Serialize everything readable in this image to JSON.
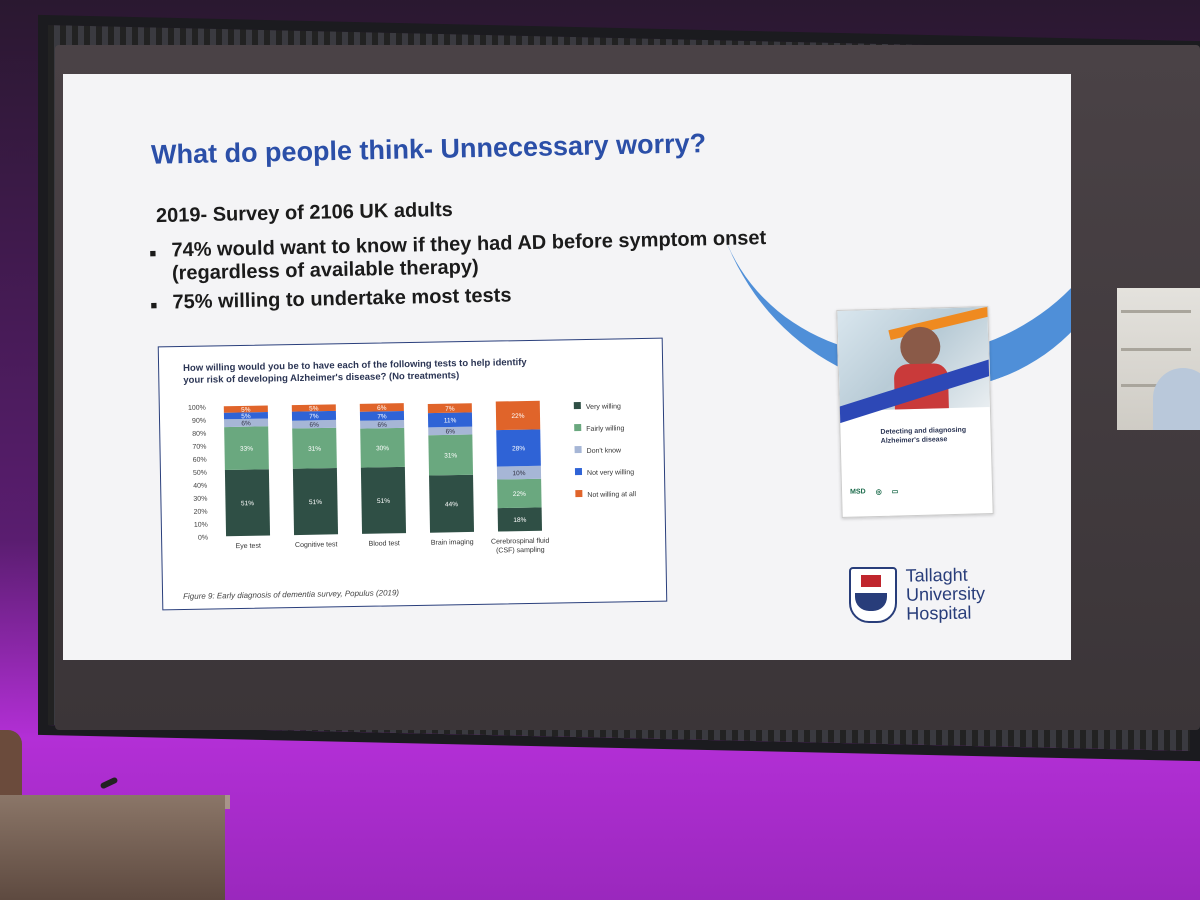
{
  "slide": {
    "title": "What do people think- Unnecessary worry?",
    "lead": "2019- Survey of 2106 UK adults",
    "bullets": [
      {
        "line1": "74% would want to know if they had AD before symptom onset",
        "line2": "(regardless of available therapy)"
      },
      {
        "line1": "75% willing to undertake most tests",
        "line2": ""
      }
    ]
  },
  "chart_data": {
    "type": "bar",
    "stacked": true,
    "title": "How willing would you be to have each of the following tests to help identify your risk of developing Alzheimer's disease? (No treatments)",
    "caption": "Figure 9: Early diagnosis of dementia survey, Populus (2019)",
    "categories": [
      "Eye test",
      "Cognitive test",
      "Blood test",
      "Brain imaging",
      "Cerebrospinal fluid (CSF) sampling"
    ],
    "yticks": [
      "0%",
      "10%",
      "20%",
      "30%",
      "40%",
      "50%",
      "60%",
      "70%",
      "80%",
      "90%",
      "100%"
    ],
    "ylim": [
      0,
      100
    ],
    "legend_position": "right",
    "series": [
      {
        "name": "Very willing",
        "color": "#2f4f45",
        "values": [
          51,
          51,
          51,
          44,
          18
        ]
      },
      {
        "name": "Fairly willing",
        "color": "#6aa87f",
        "values": [
          33,
          31,
          30,
          31,
          22
        ]
      },
      {
        "name": "Don't know",
        "color": "#a6b6d6",
        "values": [
          6,
          6,
          6,
          6,
          10
        ]
      },
      {
        "name": "Not very willing",
        "color": "#2f63d6",
        "values": [
          5,
          7,
          7,
          11,
          28
        ]
      },
      {
        "name": "Not willing at all",
        "color": "#e0642a",
        "values": [
          5,
          5,
          6,
          7,
          22
        ]
      }
    ],
    "labels": [
      [
        "51%",
        "33%",
        "6%",
        "5%",
        "5%"
      ],
      [
        "51%",
        "31%",
        "6%",
        "7%",
        "5%"
      ],
      [
        "51%",
        "30%",
        "6%",
        "7%",
        "6%"
      ],
      [
        "44%",
        "31%",
        "6%",
        "11%",
        "7%"
      ],
      [
        "18%",
        "22%",
        "10%",
        "28%",
        "22%"
      ]
    ]
  },
  "report": {
    "title": "Detecting and diagnosing Alzheimer's disease",
    "logo1": "MSD"
  },
  "hospital": {
    "line1": "Tallaght",
    "line2": "University",
    "line3": "Hospital"
  }
}
